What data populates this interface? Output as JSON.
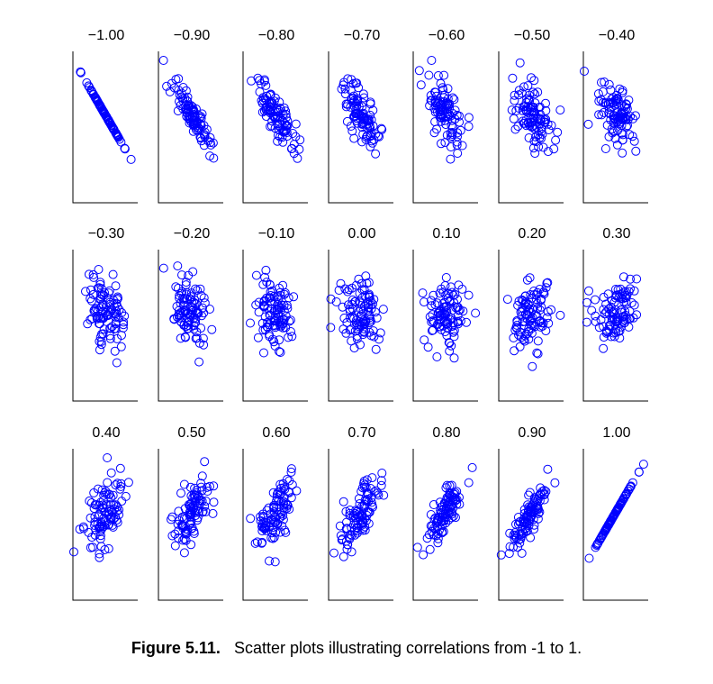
{
  "caption": {
    "label": "Figure 5.11.",
    "text": "Scatter plots illustrating correlations from -1 to 1."
  },
  "chart_data": {
    "type": "scatter",
    "layout": "small-multiples",
    "rows": 3,
    "columns": 7,
    "points_per_panel": 100,
    "axis_ticks": false,
    "marker": "open-circle",
    "marker_color": "#0000ff",
    "axis_color": "#000000",
    "grid": false,
    "panels": [
      {
        "title": "−1.00",
        "correlation": -1.0
      },
      {
        "title": "−0.90",
        "correlation": -0.9
      },
      {
        "title": "−0.80",
        "correlation": -0.8
      },
      {
        "title": "−0.70",
        "correlation": -0.7
      },
      {
        "title": "−0.60",
        "correlation": -0.6
      },
      {
        "title": "−0.50",
        "correlation": -0.5
      },
      {
        "title": "−0.40",
        "correlation": -0.4
      },
      {
        "title": "−0.30",
        "correlation": -0.3
      },
      {
        "title": "−0.20",
        "correlation": -0.2
      },
      {
        "title": "−0.10",
        "correlation": -0.1
      },
      {
        "title": "0.00",
        "correlation": 0.0
      },
      {
        "title": "0.10",
        "correlation": 0.1
      },
      {
        "title": "0.20",
        "correlation": 0.2
      },
      {
        "title": "0.30",
        "correlation": 0.3
      },
      {
        "title": "0.40",
        "correlation": 0.4
      },
      {
        "title": "0.50",
        "correlation": 0.5
      },
      {
        "title": "0.60",
        "correlation": 0.6
      },
      {
        "title": "0.70",
        "correlation": 0.7
      },
      {
        "title": "0.80",
        "correlation": 0.8
      },
      {
        "title": "0.90",
        "correlation": 0.9
      },
      {
        "title": "1.00",
        "correlation": 1.0
      }
    ]
  }
}
